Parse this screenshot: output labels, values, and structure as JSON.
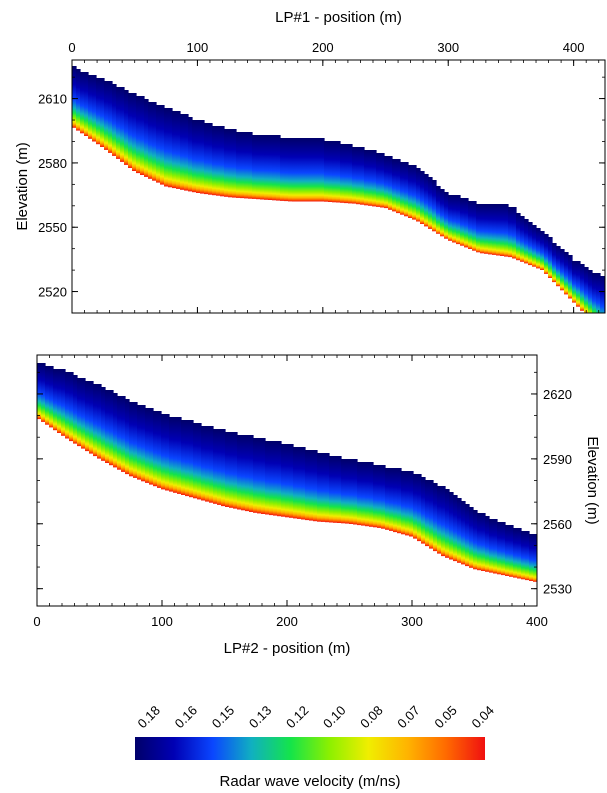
{
  "chart_data": [
    {
      "type": "heatmap",
      "title": "",
      "xlabel": "LP#1 - position (m)",
      "ylabel": "Elevation (m)",
      "xlim": [
        0,
        425
      ],
      "ylim": [
        2510,
        2628
      ],
      "x_ticks": [
        "0",
        "100",
        "200",
        "300",
        "400"
      ],
      "y_ticks": [
        "2520",
        "2550",
        "2580",
        "2610"
      ],
      "x_axis_side": "top",
      "y_axis_side": "left",
      "surface": {
        "x": [
          0,
          25,
          50,
          75,
          100,
          125,
          150,
          175,
          200,
          225,
          250,
          275,
          300,
          325,
          350,
          375,
          400,
          425
        ],
        "y": [
          2625,
          2619,
          2612,
          2606,
          2600,
          2596,
          2593,
          2592,
          2591,
          2588,
          2584,
          2578,
          2566,
          2561,
          2560,
          2548,
          2535,
          2526
        ]
      },
      "base": {
        "x": [
          0,
          25,
          50,
          75,
          100,
          125,
          150,
          175,
          200,
          225,
          250,
          275,
          300,
          325,
          350,
          375,
          400,
          425
        ],
        "y": [
          2597,
          2587,
          2576,
          2569,
          2566,
          2564,
          2563,
          2562,
          2562,
          2561,
          2559,
          2553,
          2544,
          2538,
          2536,
          2530,
          2515,
          2500
        ]
      }
    },
    {
      "type": "heatmap",
      "title": "",
      "xlabel": "LP#2 - position (m)",
      "ylabel": "Elevation (m)",
      "xlim": [
        0,
        400
      ],
      "ylim": [
        2522,
        2638
      ],
      "x_ticks": [
        "0",
        "100",
        "200",
        "300",
        "400"
      ],
      "y_ticks": [
        "2530",
        "2560",
        "2590",
        "2620"
      ],
      "x_axis_side": "bottom",
      "y_axis_side": "right",
      "surface": {
        "x": [
          0,
          25,
          50,
          75,
          100,
          125,
          150,
          175,
          200,
          225,
          250,
          275,
          300,
          325,
          350,
          375,
          400
        ],
        "y": [
          2635,
          2630,
          2624,
          2617,
          2611,
          2607,
          2603,
          2600,
          2597,
          2593,
          2590,
          2587,
          2584,
          2577,
          2566,
          2560,
          2555
        ]
      },
      "base": {
        "x": [
          0,
          25,
          50,
          75,
          100,
          125,
          150,
          175,
          200,
          225,
          250,
          275,
          300,
          325,
          350,
          375,
          400
        ],
        "y": [
          2609,
          2599,
          2590,
          2582,
          2576,
          2572,
          2568,
          2565,
          2563,
          2561,
          2560,
          2558,
          2554,
          2545,
          2539,
          2536,
          2533
        ]
      }
    },
    {
      "type": "colorbar",
      "label": "Radar wave velocity (m/ns)",
      "tick_labels": [
        "0.18",
        "0.16",
        "0.15",
        "0.13",
        "0.12",
        "0.10",
        "0.08",
        "0.07",
        "0.05",
        "0.04"
      ],
      "colormap": [
        "#00006a",
        "#0000b4",
        "#0a46ff",
        "#10b0c0",
        "#14e44a",
        "#8cf000",
        "#f0ee00",
        "#ffb400",
        "#ff6a00",
        "#f01010"
      ]
    }
  ]
}
